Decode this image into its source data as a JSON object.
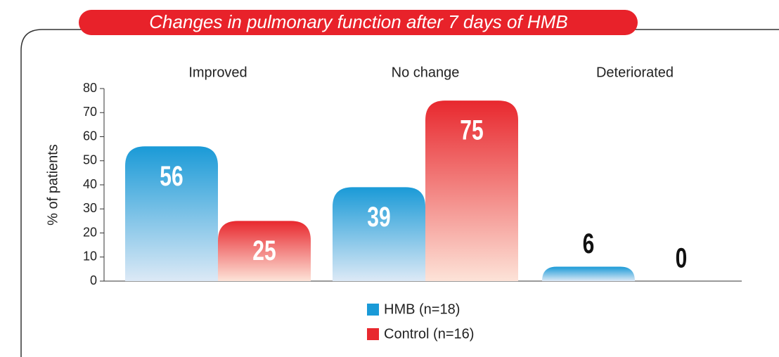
{
  "chart_data": {
    "type": "bar",
    "title": "Changes in pulmonary function after 7 days of HMB",
    "y_label": "% of patients",
    "categories": [
      "Improved",
      "No change",
      "Deteriorated"
    ],
    "series": [
      {
        "name": "HMB (n=18)",
        "color": "#1a9ad7",
        "values": [
          56,
          39,
          6
        ]
      },
      {
        "name": "Control (n=16)",
        "color": "#e8282e",
        "values": [
          25,
          75,
          0
        ]
      }
    ],
    "ylim": [
      0,
      80
    ],
    "yticks": [
      0,
      10,
      20,
      30,
      40,
      50,
      60,
      70,
      80
    ]
  }
}
